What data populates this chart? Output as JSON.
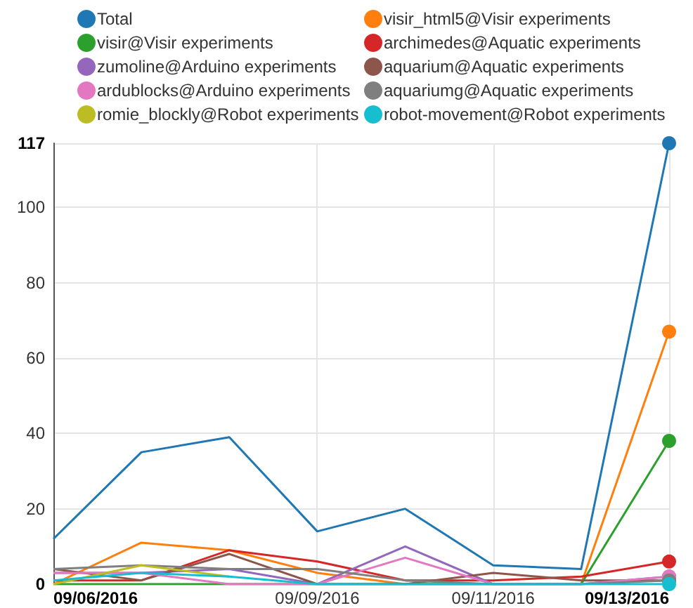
{
  "chart_data": {
    "type": "line",
    "x": [
      "2016-09-06",
      "2016-09-07",
      "2016-09-08",
      "2016-09-09",
      "2016-09-10",
      "2016-09-11",
      "2016-09-12",
      "2016-09-13"
    ],
    "xlim": [
      "2016-09-06",
      "2016-09-13"
    ],
    "xticks": [
      {
        "value": "2016-09-06",
        "label": "09/06/2016"
      },
      {
        "value": "2016-09-09",
        "label": "09/09/2016"
      },
      {
        "value": "2016-09-11",
        "label": "09/11/2016"
      },
      {
        "value": "2016-09-13",
        "label": "09/13/2016"
      }
    ],
    "ylim": [
      0,
      117
    ],
    "yticks": [
      0,
      20,
      40,
      60,
      80,
      100,
      117
    ],
    "grid": true,
    "legend": "top",
    "series": [
      {
        "name": "Total",
        "color": "#1f77b4",
        "values": [
          12,
          35,
          39,
          14,
          20,
          5,
          4,
          117
        ]
      },
      {
        "name": "visir_html5@Visir experiments",
        "color": "#ff7f0e",
        "values": [
          0,
          11,
          9,
          3,
          0,
          0,
          0,
          67
        ]
      },
      {
        "name": "visir@Visir experiments",
        "color": "#2ca02c",
        "values": [
          0,
          0,
          0,
          0,
          0,
          0,
          0,
          38
        ]
      },
      {
        "name": "archimedes@Aquatic experiments",
        "color": "#d62728",
        "values": [
          1,
          1,
          9,
          6,
          1,
          1,
          2,
          6
        ]
      },
      {
        "name": "zumoline@Arduino experiments",
        "color": "#9467bd",
        "values": [
          3,
          3,
          4,
          0,
          10,
          0,
          0,
          2
        ]
      },
      {
        "name": "aquarium@Aquatic experiments",
        "color": "#8c564b",
        "values": [
          4,
          1,
          8,
          0,
          0,
          3,
          1,
          1
        ]
      },
      {
        "name": "ardublocks@Arduino experiments",
        "color": "#e377c2",
        "values": [
          3,
          3,
          0,
          0,
          7,
          0,
          0,
          2
        ]
      },
      {
        "name": "aquariumg@Aquatic experiments",
        "color": "#7f7f7f",
        "values": [
          4,
          5,
          4,
          4,
          1,
          0,
          0,
          1
        ]
      },
      {
        "name": "romie_blockly@Robot experiments",
        "color": "#bcbd22",
        "values": [
          0,
          5,
          2,
          null,
          null,
          null,
          null,
          null
        ]
      },
      {
        "name": "robot-movement@Robot experiments",
        "color": "#17becf",
        "values": [
          1,
          3,
          2,
          0,
          0,
          0,
          0,
          0
        ]
      }
    ]
  }
}
